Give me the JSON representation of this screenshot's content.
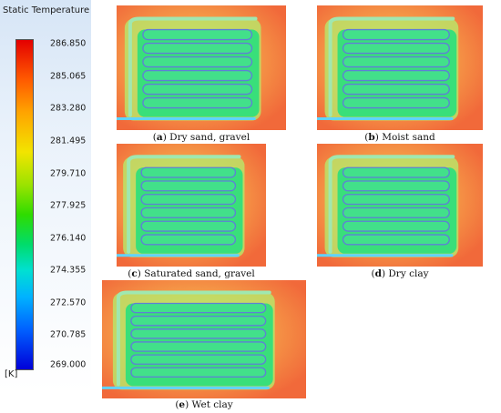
{
  "legend": {
    "title": "Static Temperature",
    "unit": "[K]",
    "ticks": [
      "286.850",
      "285.065",
      "283.280",
      "281.495",
      "279.710",
      "277.925",
      "276.140",
      "274.355",
      "272.570",
      "270.785",
      "269.000"
    ]
  },
  "panels": [
    {
      "letter": "a",
      "text": "Dry sand, gravel"
    },
    {
      "letter": "b",
      "text": "Moist sand"
    },
    {
      "letter": "c",
      "text": "Saturated sand, gravel"
    },
    {
      "letter": "d",
      "text": "Dry clay"
    },
    {
      "letter": "e",
      "text": "Wet clay"
    }
  ],
  "colors": {
    "hot": "#f1693a",
    "warm": "#f6a44a",
    "mid": "#d9e35a",
    "cool": "#39df7a",
    "pipe": "#5f7fd6"
  }
}
